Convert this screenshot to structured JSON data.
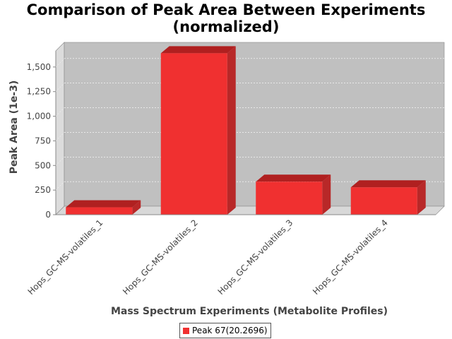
{
  "chart_data": {
    "type": "bar",
    "title_line1": "Comparison of Peak Area Between Experiments",
    "title_line2": "(normalized)",
    "xlabel": "Mass Spectrum Experiments (Metabolite Profiles)",
    "ylabel": "Peak Area (1e-3)",
    "categories": [
      "Hops_GC-MS-volatiles_1",
      "Hops_GC-MS-volatiles_2",
      "Hops_GC-MS-volatiles_3",
      "Hops_GC-MS-volatiles_4"
    ],
    "series": [
      {
        "name": "Peak 67(20.2696)",
        "values": [
          75,
          1640,
          335,
          278
        ]
      }
    ],
    "ylim": [
      0,
      1750
    ],
    "yticks": [
      0,
      250,
      500,
      750,
      1000,
      1250,
      1500
    ],
    "ytick_labels": [
      "0",
      "250",
      "500",
      "750",
      "1,000",
      "1,250",
      "1,500"
    ],
    "grid": true,
    "legend_position": "bottom",
    "colors": {
      "bar_front": "#f03030",
      "bar_top": "#b02020",
      "bar_side": "#b82828",
      "plot_back": "#c0c0c0",
      "plot_floor": "#d8d8d8",
      "plot_wall": "#dcdcdc"
    }
  }
}
